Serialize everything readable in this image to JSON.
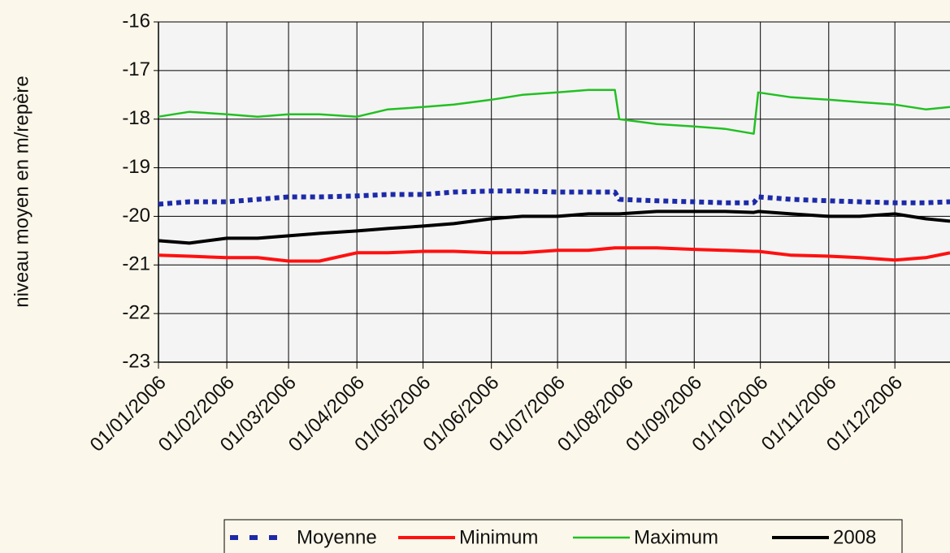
{
  "chart_data": {
    "type": "line",
    "y_label": "niveau moyen en m/repère",
    "x": [
      "01/01/2006",
      "15/01/2006",
      "01/02/2006",
      "15/02/2006",
      "01/03/2006",
      "15/03/2006",
      "01/04/2006",
      "15/04/2006",
      "01/05/2006",
      "15/05/2006",
      "01/06/2006",
      "15/06/2006",
      "01/07/2006",
      "15/07/2006",
      "27/07/2006",
      "29/07/2006",
      "15/08/2006",
      "01/09/2006",
      "15/09/2006",
      "28/09/2006",
      "30/09/2006",
      "15/10/2006",
      "01/11/2006",
      "15/11/2006",
      "01/12/2006",
      "15/12/2006",
      "26/12/2006"
    ],
    "series": [
      {
        "name": "Moyenne",
        "color": "#1c2aa8",
        "dash": true,
        "values": [
          -19.75,
          -19.7,
          -19.7,
          -19.65,
          -19.6,
          -19.6,
          -19.58,
          -19.55,
          -19.55,
          -19.5,
          -19.48,
          -19.48,
          -19.5,
          -19.5,
          -19.5,
          -19.65,
          -19.68,
          -19.7,
          -19.72,
          -19.72,
          -19.6,
          -19.65,
          -19.68,
          -19.7,
          -19.72,
          -19.72,
          -19.7
        ]
      },
      {
        "name": "Minimum",
        "color": "#ff1010",
        "values": [
          -20.8,
          -20.82,
          -20.85,
          -20.85,
          -20.92,
          -20.92,
          -20.75,
          -20.75,
          -20.72,
          -20.72,
          -20.75,
          -20.75,
          -20.7,
          -20.7,
          -20.65,
          -20.65,
          -20.65,
          -20.68,
          -20.7,
          -20.72,
          -20.72,
          -20.8,
          -20.82,
          -20.85,
          -20.9,
          -20.85,
          -20.75
        ]
      },
      {
        "name": "Maximum",
        "color": "#22c022",
        "values": [
          -17.95,
          -17.85,
          -17.9,
          -17.95,
          -17.9,
          -17.9,
          -17.95,
          -17.8,
          -17.75,
          -17.7,
          -17.6,
          -17.5,
          -17.45,
          -17.4,
          -17.4,
          -18.0,
          -18.1,
          -18.15,
          -18.2,
          -18.3,
          -17.45,
          -17.55,
          -17.6,
          -17.65,
          -17.7,
          -17.8,
          -17.75
        ]
      },
      {
        "name": "2008",
        "color": "#000000",
        "values": [
          -20.5,
          -20.55,
          -20.45,
          -20.45,
          -20.4,
          -20.35,
          -20.3,
          -20.25,
          -20.2,
          -20.15,
          -20.05,
          -20.0,
          -20.0,
          -19.95,
          -19.95,
          -19.95,
          -19.9,
          -19.9,
          -19.9,
          -19.92,
          -19.9,
          -19.95,
          -20.0,
          -20.0,
          -19.95,
          -20.05,
          -20.1
        ]
      }
    ],
    "xlim": [
      "01/01/2006",
      "26/12/2006"
    ],
    "xticks": [
      "01/01/2006",
      "01/02/2006",
      "01/03/2006",
      "01/04/2006",
      "01/05/2006",
      "01/06/2006",
      "01/07/2006",
      "01/08/2006",
      "01/09/2006",
      "01/10/2006",
      "01/11/2006",
      "01/12/2006"
    ],
    "ylim": [
      -23,
      -16
    ],
    "yticks": [
      -16,
      -17,
      -18,
      -19,
      -20,
      -21,
      -22,
      -23
    ],
    "grid": true,
    "legend": "bottom"
  }
}
